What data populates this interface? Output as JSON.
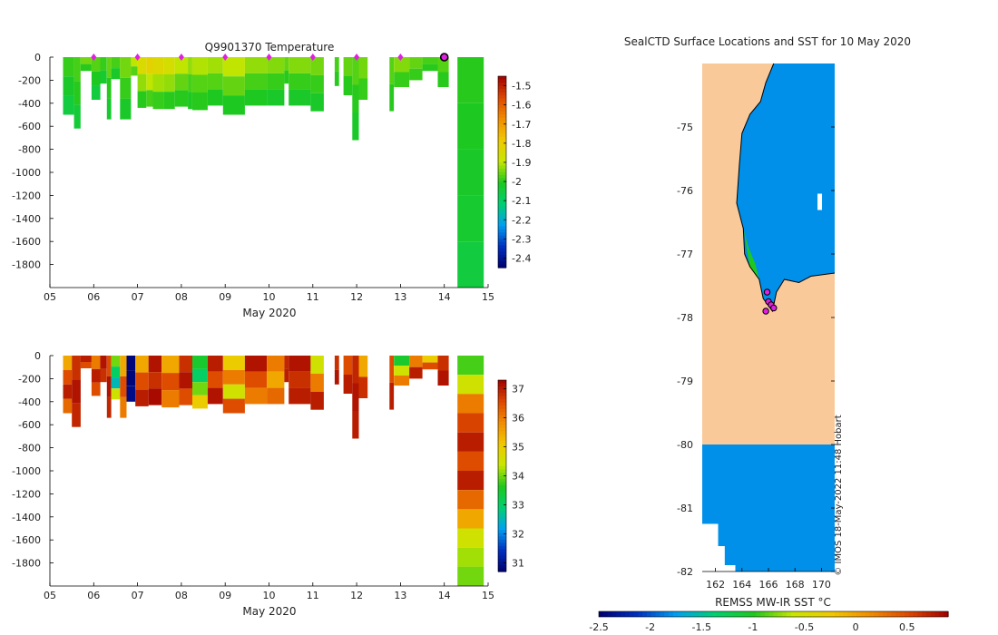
{
  "chart_data": [
    {
      "id": "temperature-section",
      "type": "heatmap",
      "title": "Q9901370  Temperature",
      "xlabel": "May 2020",
      "ylabel": "",
      "xlim": [
        5,
        15
      ],
      "ylim": [
        -2000,
        0
      ],
      "xticks": [
        5,
        6,
        7,
        8,
        9,
        10,
        11,
        12,
        13,
        14,
        15
      ],
      "xtick_labels": [
        "05",
        "06",
        "07",
        "08",
        "09",
        "10",
        "11",
        "12",
        "13",
        "14",
        "15"
      ],
      "yticks": [
        0,
        -200,
        -400,
        -600,
        -800,
        -1000,
        -1200,
        -1400,
        -1600,
        -1800
      ],
      "colorbar": {
        "range": [
          -2.45,
          -1.45
        ],
        "ticks": [
          -1.5,
          -1.6,
          -1.7,
          -1.8,
          -1.9,
          -2,
          -2.1,
          -2.2,
          -2.3,
          -2.4
        ],
        "colors": [
          "#000070",
          "#0030c0",
          "#00a0f0",
          "#00d070",
          "#1ec81e",
          "#c8e600",
          "#f0c800",
          "#f08c00",
          "#dc4600",
          "#a00000"
        ]
      },
      "markers": {
        "days": [
          6,
          7,
          8,
          9,
          10,
          11,
          12,
          13
        ],
        "color": "#e020e0",
        "current_day": 14.0
      },
      "profiles": [
        {
          "x0": 5.3,
          "x1": 5.55,
          "depth": 500,
          "values": [
            -1.99,
            -2.02,
            -2.05
          ]
        },
        {
          "x0": 5.55,
          "x1": 5.7,
          "depth": 620,
          "values": [
            -1.98,
            -2.0,
            -2.04
          ]
        },
        {
          "x0": 5.7,
          "x1": 5.95,
          "depth": 120,
          "values": [
            -1.95,
            -2.0
          ]
        },
        {
          "x0": 5.95,
          "x1": 6.15,
          "depth": 370,
          "values": [
            -1.97,
            -2.01,
            -2.05
          ]
        },
        {
          "x0": 6.15,
          "x1": 6.3,
          "depth": 230,
          "values": [
            -1.99,
            -2.03
          ]
        },
        {
          "x0": 6.3,
          "x1": 6.4,
          "depth": 540,
          "values": [
            -1.96,
            -2.0,
            -2.03
          ]
        },
        {
          "x0": 6.4,
          "x1": 6.6,
          "depth": 190,
          "values": [
            -1.98,
            -2.02
          ]
        },
        {
          "x0": 6.6,
          "x1": 6.85,
          "depth": 540,
          "values": [
            -1.95,
            -1.99,
            -2.02
          ]
        },
        {
          "x0": 6.85,
          "x1": 7.0,
          "depth": 160,
          "values": [
            -1.9,
            -1.97
          ]
        },
        {
          "x0": 7.0,
          "x1": 7.2,
          "depth": 440,
          "values": [
            -1.85,
            -1.93,
            -2.0
          ]
        },
        {
          "x0": 7.2,
          "x1": 7.35,
          "depth": 430,
          "values": [
            -1.82,
            -1.9,
            -1.98
          ]
        },
        {
          "x0": 7.35,
          "x1": 7.6,
          "depth": 450,
          "values": [
            -1.84,
            -1.92,
            -1.99
          ]
        },
        {
          "x0": 7.6,
          "x1": 7.85,
          "depth": 450,
          "values": [
            -1.86,
            -1.93,
            -2.0
          ]
        },
        {
          "x0": 7.85,
          "x1": 8.15,
          "depth": 430,
          "values": [
            -1.9,
            -1.96,
            -2.0
          ]
        },
        {
          "x0": 8.15,
          "x1": 8.25,
          "depth": 450,
          "values": [
            -1.93,
            -1.98,
            -2.01
          ]
        },
        {
          "x0": 8.25,
          "x1": 8.6,
          "depth": 460,
          "values": [
            -1.91,
            -1.97,
            -2.0
          ]
        },
        {
          "x0": 8.6,
          "x1": 8.95,
          "depth": 420,
          "values": [
            -1.92,
            -1.97,
            -2.01
          ]
        },
        {
          "x0": 8.95,
          "x1": 9.45,
          "depth": 500,
          "values": [
            -1.9,
            -1.96,
            -2.01
          ]
        },
        {
          "x0": 9.45,
          "x1": 9.95,
          "depth": 420,
          "values": [
            -1.93,
            -1.98,
            -2.01
          ]
        },
        {
          "x0": 9.95,
          "x1": 10.35,
          "depth": 420,
          "values": [
            -1.94,
            -1.99,
            -2.02
          ]
        },
        {
          "x0": 10.35,
          "x1": 10.45,
          "depth": 230,
          "values": [
            -1.96,
            -2.0
          ]
        },
        {
          "x0": 10.45,
          "x1": 10.95,
          "depth": 420,
          "values": [
            -1.94,
            -1.99,
            -2.02
          ]
        },
        {
          "x0": 10.95,
          "x1": 11.25,
          "depth": 470,
          "values": [
            -1.95,
            -1.99,
            -2.02
          ]
        },
        {
          "x0": 11.5,
          "x1": 11.6,
          "depth": 250,
          "values": [
            -1.98,
            -2.0
          ]
        },
        {
          "x0": 11.7,
          "x1": 11.9,
          "depth": 330,
          "values": [
            -1.96,
            -2.0
          ]
        },
        {
          "x0": 11.9,
          "x1": 12.05,
          "depth": 720,
          "values": [
            -1.97,
            -2.0,
            -2.02
          ]
        },
        {
          "x0": 12.05,
          "x1": 12.25,
          "depth": 370,
          "values": [
            -1.95,
            -1.99
          ]
        },
        {
          "x0": 12.75,
          "x1": 12.85,
          "depth": 470,
          "values": [
            -1.97,
            -2.0
          ]
        },
        {
          "x0": 12.85,
          "x1": 13.2,
          "depth": 260,
          "values": [
            -1.94,
            -1.99
          ]
        },
        {
          "x0": 13.2,
          "x1": 13.5,
          "depth": 200,
          "values": [
            -1.96,
            -1.99
          ]
        },
        {
          "x0": 13.5,
          "x1": 13.85,
          "depth": 120,
          "values": [
            -1.98,
            -2.0
          ]
        },
        {
          "x0": 13.85,
          "x1": 14.1,
          "depth": 260,
          "values": [
            -1.97,
            -2.0
          ]
        },
        {
          "x0": 14.3,
          "x1": 14.9,
          "depth": 2000,
          "values": [
            -2.0,
            -2.01,
            -2.02,
            -2.03,
            -2.05
          ]
        }
      ]
    },
    {
      "id": "salinity-section",
      "type": "heatmap",
      "title": "",
      "xlabel": "May 2020",
      "ylabel": "",
      "xlim": [
        5,
        15
      ],
      "ylim": [
        -2000,
        0
      ],
      "xticks": [
        5,
        6,
        7,
        8,
        9,
        10,
        11,
        12,
        13,
        14,
        15
      ],
      "xtick_labels": [
        "05",
        "06",
        "07",
        "08",
        "09",
        "10",
        "11",
        "12",
        "13",
        "14",
        "15"
      ],
      "yticks": [
        0,
        -200,
        -400,
        -600,
        -800,
        -1000,
        -1200,
        -1400,
        -1600,
        -1800
      ],
      "colorbar": {
        "range": [
          30.7,
          37.3
        ],
        "ticks": [
          37,
          36,
          35,
          34,
          33,
          32,
          31
        ],
        "colors": [
          "#000070",
          "#0030c0",
          "#00a0f0",
          "#00d070",
          "#1ec81e",
          "#c8e600",
          "#f0c800",
          "#f08c00",
          "#dc4600",
          "#a00000"
        ]
      },
      "profiles": [
        {
          "x0": 5.3,
          "x1": 5.5,
          "depth": 500,
          "values": [
            35.5,
            36.5,
            37.0,
            36.2
          ]
        },
        {
          "x0": 5.5,
          "x1": 5.7,
          "depth": 620,
          "values": [
            36.8,
            37.1,
            36.9
          ]
        },
        {
          "x0": 5.7,
          "x1": 5.95,
          "depth": 110,
          "values": [
            37.0,
            36.5
          ]
        },
        {
          "x0": 5.95,
          "x1": 6.15,
          "depth": 350,
          "values": [
            36.0,
            37.0,
            36.5
          ]
        },
        {
          "x0": 6.15,
          "x1": 6.3,
          "depth": 230,
          "values": [
            37.1,
            36.8
          ]
        },
        {
          "x0": 6.3,
          "x1": 6.4,
          "depth": 540,
          "values": [
            36.5,
            37.1,
            36.9
          ]
        },
        {
          "x0": 6.4,
          "x1": 6.6,
          "depth": 380,
          "values": [
            34.0,
            33.0,
            32.5,
            34.5
          ]
        },
        {
          "x0": 6.6,
          "x1": 6.75,
          "depth": 540,
          "values": [
            35.5,
            36.5,
            36.0
          ]
        },
        {
          "x0": 6.75,
          "x1": 6.95,
          "depth": 400,
          "values": [
            30.8,
            30.8,
            30.9
          ]
        },
        {
          "x0": 6.95,
          "x1": 7.25,
          "depth": 440,
          "values": [
            35.5,
            36.5,
            37.0
          ]
        },
        {
          "x0": 7.25,
          "x1": 7.55,
          "depth": 430,
          "values": [
            37.1,
            36.8,
            37.2
          ]
        },
        {
          "x0": 7.55,
          "x1": 7.95,
          "depth": 450,
          "values": [
            35.5,
            36.5,
            36.0
          ]
        },
        {
          "x0": 7.95,
          "x1": 8.25,
          "depth": 430,
          "values": [
            36.8,
            37.1,
            36.5
          ]
        },
        {
          "x0": 8.25,
          "x1": 8.6,
          "depth": 460,
          "values": [
            33.5,
            33.0,
            34.0,
            35.0
          ]
        },
        {
          "x0": 8.6,
          "x1": 8.95,
          "depth": 420,
          "values": [
            37.0,
            36.5,
            37.1
          ]
        },
        {
          "x0": 8.95,
          "x1": 9.45,
          "depth": 500,
          "values": [
            35.0,
            36.0,
            34.5,
            36.5
          ]
        },
        {
          "x0": 9.45,
          "x1": 9.95,
          "depth": 420,
          "values": [
            37.1,
            36.5,
            36.0
          ]
        },
        {
          "x0": 9.95,
          "x1": 10.35,
          "depth": 420,
          "values": [
            36.0,
            35.5,
            36.2
          ]
        },
        {
          "x0": 10.35,
          "x1": 10.45,
          "depth": 230,
          "values": [
            36.9,
            37.0
          ]
        },
        {
          "x0": 10.45,
          "x1": 10.95,
          "depth": 420,
          "values": [
            37.1,
            36.8,
            37.0
          ]
        },
        {
          "x0": 10.95,
          "x1": 11.25,
          "depth": 470,
          "values": [
            34.5,
            36.0,
            37.0
          ]
        },
        {
          "x0": 11.5,
          "x1": 11.6,
          "depth": 250,
          "values": [
            36.8,
            37.1
          ]
        },
        {
          "x0": 11.7,
          "x1": 11.9,
          "depth": 330,
          "values": [
            36.5,
            37.0
          ]
        },
        {
          "x0": 11.9,
          "x1": 12.05,
          "depth": 720,
          "values": [
            36.9,
            37.1,
            37.0
          ]
        },
        {
          "x0": 12.05,
          "x1": 12.25,
          "depth": 370,
          "values": [
            35.5,
            36.8
          ]
        },
        {
          "x0": 12.75,
          "x1": 12.85,
          "depth": 470,
          "values": [
            36.5,
            37.0
          ]
        },
        {
          "x0": 12.85,
          "x1": 13.2,
          "depth": 260,
          "values": [
            33.5,
            34.5,
            36.0
          ]
        },
        {
          "x0": 13.2,
          "x1": 13.5,
          "depth": 200,
          "values": [
            36.0,
            37.0
          ]
        },
        {
          "x0": 13.5,
          "x1": 13.85,
          "depth": 120,
          "values": [
            35.0,
            36.5
          ]
        },
        {
          "x0": 13.85,
          "x1": 14.1,
          "depth": 260,
          "values": [
            36.8,
            37.1
          ]
        },
        {
          "x0": 14.3,
          "x1": 14.9,
          "depth": 2000,
          "values": [
            33.8,
            34.5,
            36.0,
            36.6,
            37.0,
            36.5,
            37.0,
            36.2,
            35.5,
            34.5,
            34.2,
            34.0
          ]
        }
      ]
    },
    {
      "id": "sst-map",
      "type": "heatmap",
      "title": "SealCTD Surface Locations and SST for 10 May 2020",
      "xlabel": "",
      "ylabel": "",
      "xlim": [
        161,
        171
      ],
      "ylim": [
        -82,
        -74
      ],
      "xticks": [
        162,
        164,
        166,
        168,
        170
      ],
      "yticks": [
        -75,
        -76,
        -77,
        -78,
        -79,
        -80,
        -81,
        -82
      ],
      "land_color": "#f9c99a",
      "ocean_sst_c": -1.8,
      "seal_positions": [
        [
          165.9,
          -77.6
        ],
        [
          166.0,
          -77.75
        ],
        [
          166.2,
          -77.8
        ],
        [
          166.4,
          -77.85
        ],
        [
          165.8,
          -77.9
        ]
      ],
      "credit": "© IMOS 18-May-2022 11:48 Hobart",
      "colorbar": {
        "label": "REMSS MW-IR SST °C",
        "range": [
          -2.5,
          0.9
        ],
        "ticks": [
          -2.5,
          -2,
          -1.5,
          -1,
          -0.5,
          0,
          0.5
        ],
        "tick_labels": [
          "-2.5",
          "-2",
          "-1.5",
          "-1",
          "-0.5",
          "0",
          "0.5"
        ],
        "colors": [
          "#000070",
          "#0030c0",
          "#00a0f0",
          "#00d070",
          "#1ec81e",
          "#c8e600",
          "#f0c800",
          "#f08c00",
          "#dc4600",
          "#a00000"
        ]
      }
    }
  ]
}
